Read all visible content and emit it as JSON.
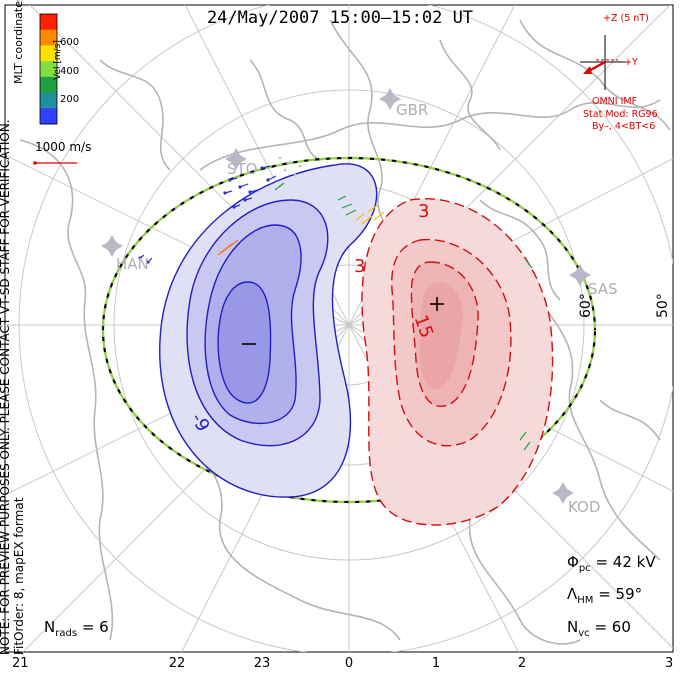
{
  "title": "24/May/2007 15:00–15:02 UT",
  "left_notes": {
    "mlt": "MLT coordinates",
    "preview": "NOTE: FOR PREVIEW PURPOSES ONLY. PLEASE CONTACT VT-SD STAFF FOR VERIFICATION.",
    "fit": "FitOrder: 8, mapEX format"
  },
  "color_bar": {
    "label": "Vel [m/s]",
    "ticks": [
      "600",
      "400",
      "200"
    ],
    "colors": [
      "#ff2000",
      "#ff8a00",
      "#ffe000",
      "#80e040",
      "#20a040",
      "#2090a0",
      "#3040ff"
    ]
  },
  "vector_scale": "1000 m/s",
  "imf": {
    "z_label": "+Z (5 nT)",
    "y_label": "+Y",
    "source": "OMNI IMF",
    "stat_mod": "Stat Mod: RG96",
    "condition": "By–, 4<BT<6"
  },
  "sites": [
    "GBR",
    "STO",
    "HAN",
    "SAS",
    "KOD"
  ],
  "lat_labels": [
    "60°",
    "50°"
  ],
  "contour_labels": {
    "neg": "-9",
    "pos1": "3",
    "pos2": "3",
    "pos3": "15"
  },
  "markers": {
    "min": "–",
    "max": "+"
  },
  "stats": {
    "phi_sym": "Φ",
    "phi_sub": "pc",
    "phi_val": "= 42 kV",
    "lam_sym": "Λ",
    "lam_sub": "HM",
    "lam_val": "= 59°",
    "nvc_sym": "N",
    "nvc_sub": "vc",
    "nvc_val": "= 60",
    "nrads_sym": "N",
    "nrads_sub": "rads",
    "nrads_val": "= 6"
  },
  "x_ticks": [
    "21",
    "22",
    "23",
    "0",
    "1",
    "2",
    "3"
  ],
  "colors": {
    "neg_cell": "#2020c0",
    "pos_cell": "#d01010",
    "imf_text": "#e00000",
    "geo": "#b4b4b4",
    "hmb": "#90d040"
  }
}
